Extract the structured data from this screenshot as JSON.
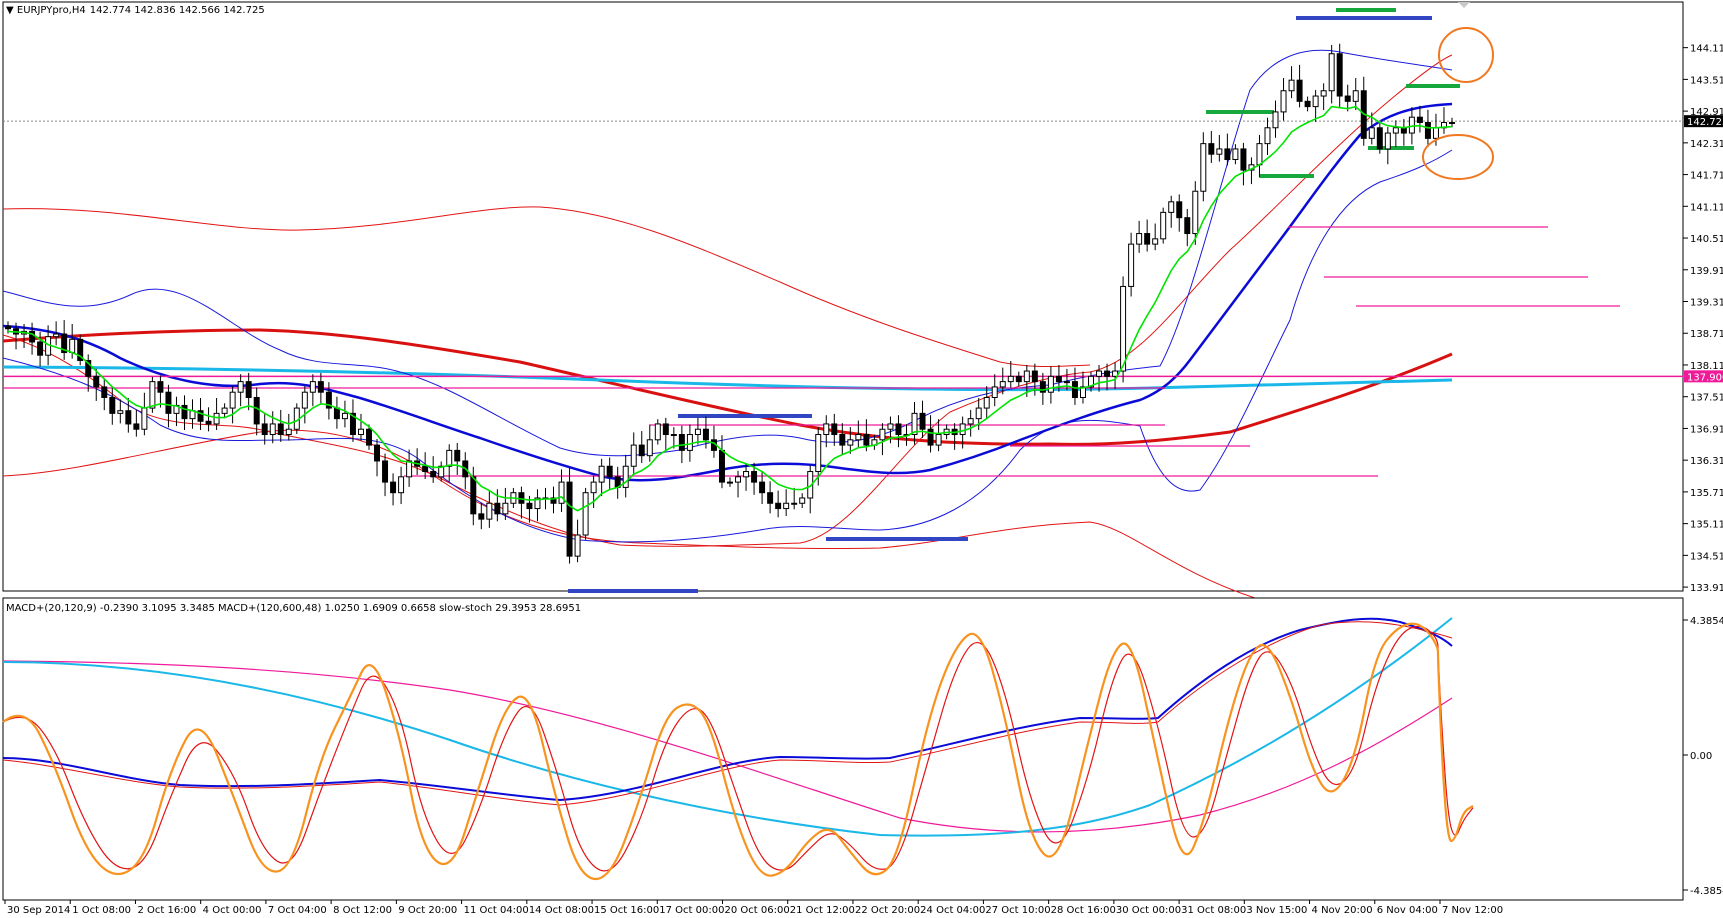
{
  "header": {
    "symbol": "EURJPYpro,H4",
    "ohlc": "142.774 142.836 142.566 142.725"
  },
  "indicator_header": "MACD+(20,120,9) -0.2390 3.1095 3.3485  MACD+(120,600,48) 1.0250 1.6909 0.6658  slow-stoch 29.3953 28.6951",
  "colors": {
    "candle_up": "#ffffff",
    "candle_down": "#000000",
    "bollinger": "#1a1adc",
    "envelope": "#e21414",
    "ema_fast": "#00e400",
    "ma_blue": "#0b0bd8",
    "ma_red": "#d91010",
    "cyan_line": "#19b8e8",
    "magenta": "#ef1a9a",
    "navy_level": "#3246c4",
    "green_level": "#16a83c",
    "circle": "#f07820",
    "stoch_main": "#f7931e",
    "stoch_signal": "#e21414"
  },
  "chart_data": [
    {
      "type": "candlestick",
      "title": "EURJPYpro,H4",
      "y_ticks": [
        "144.115",
        "143.515",
        "142.915",
        "142.315",
        "141.715",
        "141.115",
        "140.515",
        "139.915",
        "139.315",
        "138.715",
        "138.115",
        "137.515",
        "136.915",
        "136.315",
        "135.715",
        "135.115",
        "134.515",
        "133.915"
      ],
      "ylim": [
        133.86,
        144.6
      ],
      "x_tick_labels": [
        "30 Sep 2014",
        "1 Oct 08:00",
        "2 Oct 16:00",
        "4 Oct 00:00",
        "7 Oct 04:00",
        "8 Oct 12:00",
        "9 Oct 20:00",
        "11 Oct 04:00",
        "14 Oct 08:00",
        "15 Oct 16:00",
        "17 Oct 00:00",
        "20 Oct 06:00",
        "21 Oct 12:00",
        "22 Oct 20:00",
        "24 Oct 04:00",
        "27 Oct 10:00",
        "28 Oct 16:00",
        "30 Oct 00:00",
        "31 Oct 08:00",
        "3 Nov 15:00",
        "4 Nov 20:00",
        "6 Nov 04:00",
        "7 Nov 12:00"
      ],
      "current_price": 142.725,
      "current_price_label": "142.725",
      "horizontal_level": 137.9,
      "horizontal_level_label": "137.900",
      "closes": [
        138.8,
        138.7,
        138.75,
        138.55,
        138.3,
        138.65,
        138.7,
        138.35,
        138.6,
        138.2,
        137.9,
        137.7,
        137.5,
        137.2,
        137.25,
        137.0,
        136.9,
        137.3,
        137.8,
        137.6,
        137.2,
        137.35,
        137.1,
        137.25,
        137.05,
        137.0,
        137.2,
        137.3,
        137.6,
        137.8,
        137.5,
        137.0,
        136.8,
        137.0,
        136.8,
        136.9,
        137.3,
        137.6,
        137.8,
        137.6,
        137.3,
        137.1,
        137.2,
        136.8,
        136.9,
        136.6,
        136.3,
        135.9,
        135.7,
        136.0,
        136.3,
        136.2,
        136.1,
        136.0,
        136.2,
        136.5,
        136.3,
        136.0,
        135.3,
        135.2,
        135.5,
        135.3,
        135.5,
        135.7,
        135.5,
        135.4,
        135.6,
        135.6,
        135.5,
        135.9,
        134.5,
        134.9,
        135.7,
        135.9,
        136.2,
        136.0,
        135.8,
        136.2,
        136.6,
        136.4,
        136.7,
        137.0,
        136.8,
        136.8,
        136.5,
        136.8,
        136.9,
        136.7,
        136.5,
        135.9,
        135.9,
        136.0,
        136.1,
        135.9,
        135.7,
        135.5,
        135.4,
        135.5,
        135.5,
        135.6,
        136.1,
        136.8,
        137.0,
        136.8,
        136.6,
        136.7,
        136.8,
        136.6,
        136.7,
        136.9,
        137.0,
        136.8,
        136.8,
        137.2,
        136.9,
        136.6,
        136.8,
        136.9,
        136.8,
        137.0,
        137.1,
        137.3,
        137.5,
        137.7,
        137.8,
        137.9,
        137.8,
        138.0,
        137.8,
        137.6,
        137.9,
        137.8,
        137.8,
        137.5,
        137.7,
        137.9,
        138.0,
        137.9,
        138.0,
        139.6,
        140.4,
        140.6,
        140.4,
        140.5,
        141.0,
        141.2,
        140.9,
        140.6,
        141.4,
        142.3,
        142.1,
        142.2,
        142.0,
        142.2,
        141.8,
        141.9,
        142.3,
        142.6,
        142.9,
        143.3,
        143.5,
        143.1,
        143.0,
        143.2,
        143.3,
        144.0,
        143.2,
        143.1,
        143.3,
        142.4,
        142.6,
        142.2,
        142.5,
        142.6,
        142.5,
        142.8,
        142.7,
        142.4,
        142.6,
        142.7,
        142.7
      ],
      "ema_fast": [
        138.75,
        138.74,
        138.73,
        138.7,
        138.6,
        138.5,
        138.45,
        138.4,
        138.35,
        138.28,
        138.15,
        138.0,
        137.85,
        137.7,
        137.58,
        137.45,
        137.35,
        137.3,
        137.34,
        137.38,
        137.36,
        137.34,
        137.28,
        137.25,
        137.2,
        137.15,
        137.12,
        137.12,
        137.18,
        137.3,
        137.34,
        137.3,
        137.2,
        137.12,
        137.05,
        137.0,
        137.06,
        137.18,
        137.3,
        137.38,
        137.36,
        137.3,
        137.25,
        137.15,
        137.06,
        136.95,
        136.8,
        136.6,
        136.42,
        136.3,
        136.28,
        136.25,
        136.22,
        136.18,
        136.18,
        136.22,
        136.22,
        136.16,
        135.98,
        135.82,
        135.74,
        135.64,
        135.6,
        135.6,
        135.58,
        135.56,
        135.57,
        135.58,
        135.58,
        135.62,
        135.45,
        135.36,
        135.44,
        135.53,
        135.68,
        135.76,
        135.8,
        135.9,
        136.05,
        136.12,
        136.22,
        136.4,
        136.5,
        136.58,
        136.6,
        136.62,
        136.66,
        136.67,
        136.64,
        136.5,
        136.38,
        136.3,
        136.25,
        136.18,
        136.1,
        135.98,
        135.86,
        135.8,
        135.76,
        135.76,
        135.82,
        136.0,
        136.2,
        136.35,
        136.42,
        136.48,
        136.55,
        136.57,
        136.6,
        136.66,
        136.73,
        136.75,
        136.77,
        136.85,
        136.86,
        136.83,
        136.82,
        136.84,
        136.84,
        136.87,
        136.92,
        137.0,
        137.1,
        137.22,
        137.34,
        137.45,
        137.52,
        137.6,
        137.65,
        137.64,
        137.68,
        137.7,
        137.72,
        137.68,
        137.68,
        137.72,
        137.78,
        137.8,
        137.84,
        138.1,
        138.45,
        138.78,
        139.05,
        139.3,
        139.6,
        139.9,
        140.12,
        140.26,
        140.5,
        140.85,
        141.12,
        141.35,
        141.52,
        141.68,
        141.76,
        141.82,
        141.9,
        142.02,
        142.15,
        142.32,
        142.52,
        142.62,
        142.7,
        142.77,
        142.83,
        143.0,
        142.98,
        142.96,
        143.0,
        142.86,
        142.8,
        142.7,
        142.64,
        142.62,
        142.6,
        142.63,
        142.64,
        142.6,
        142.6,
        142.61,
        142.62
      ]
    },
    {
      "type": "line",
      "title": "MACD+(20,120,9) MACD+(120,600,48) slow-stoch",
      "y_ticks": [
        "4.3854",
        "0.00",
        "-4.3854"
      ],
      "ylim": [
        -4.3854,
        4.3854
      ]
    }
  ]
}
